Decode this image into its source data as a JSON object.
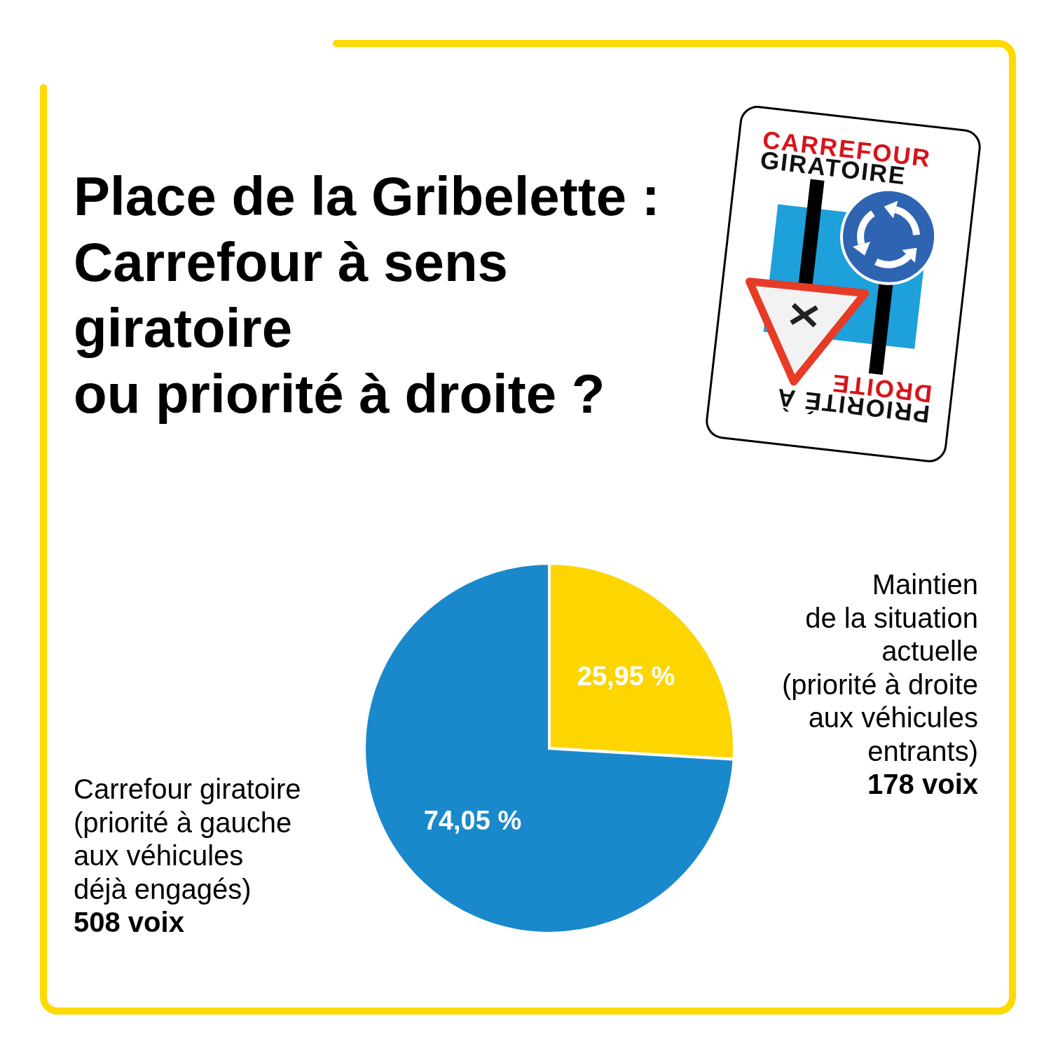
{
  "chart_data": {
    "type": "pie",
    "title": "Place de la Gribelette :\nCarrefour à sens\ngiratoire\nou priorité à droite ?",
    "categories": [
      "Maintien\nde la situation\nactuelle\n(priorité à droite\naux véhicules\nentrants)\n178 voix",
      "Carrefour giratoire\n(priorité à gauche\naux véhicules\ndéjà engagés)\n508 voix"
    ],
    "values": [
      25.95,
      74.05
    ],
    "colors": [
      "#fdd500",
      "#1a89cb"
    ],
    "value_labels": [
      "25,95 %",
      "74,05 %"
    ],
    "annotations": [
      "CARREFOUR\nGIRATOIRE",
      "PRIORITÉ À\nDROITE"
    ]
  }
}
